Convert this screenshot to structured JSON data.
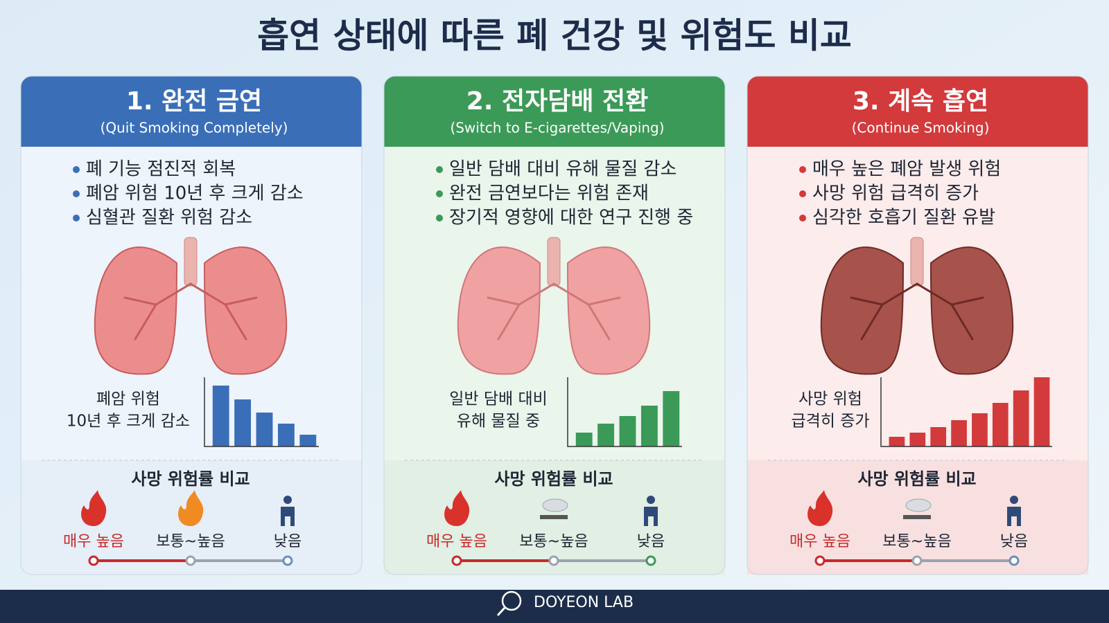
{
  "title": "흡연 상태에 따른 폐 건강 및 위험도 비교",
  "cards": [
    {
      "heading": "1. 완전 금연",
      "subheading": "(Quit Smoking Completely)",
      "points": [
        "폐 기능 점진적 회복",
        "폐암 위험 10년 후 크게 감소",
        "심혈관 질환 위험 감소"
      ],
      "chart": {
        "label_lines": [
          "폐암 위험",
          "10년 후 크게 감소"
        ],
        "values": [
          88,
          68,
          49,
          33,
          17
        ],
        "ylim": [
          0,
          100
        ]
      },
      "risk_title": "사망 위험률 비교",
      "risk_levels": [
        "매우 높음",
        "보통~높음",
        "낮음"
      ]
    },
    {
      "heading": "2. 전자담배 전환",
      "subheading": "(Switch to E-cigarettes/Vaping)",
      "points": [
        "일반 담배 대비 유해 물질 감소",
        "완전 금연보다는 위험 존재",
        "장기적 영향에 대한 연구 진행 중"
      ],
      "chart": {
        "label_lines": [
          "일반 담배 대비",
          "유해 물질 중"
        ],
        "values": [
          20,
          33,
          44,
          59,
          80
        ],
        "ylim": [
          0,
          100
        ]
      },
      "risk_title": "사망 위험률 비교",
      "risk_levels": [
        "매우 높음",
        "보통~높음",
        "낮음"
      ]
    },
    {
      "heading": "3. 계속 흡연",
      "subheading": "(Continue Smoking)",
      "points": [
        "매우 높은 폐암 발생 위험",
        "사망 위험 급격히 증가",
        "심각한 호흡기 질환 유발"
      ],
      "chart": {
        "label_lines": [
          "사망 위험",
          "급격히 증가"
        ],
        "values": [
          14,
          20,
          28,
          38,
          48,
          63,
          81,
          100
        ],
        "ylim": [
          0,
          100
        ]
      },
      "risk_title": "사망 위험률 비교",
      "risk_levels": [
        "매우 높음",
        "보통~높음",
        "낮음"
      ]
    }
  ],
  "footer": "DOYEON LAB"
}
